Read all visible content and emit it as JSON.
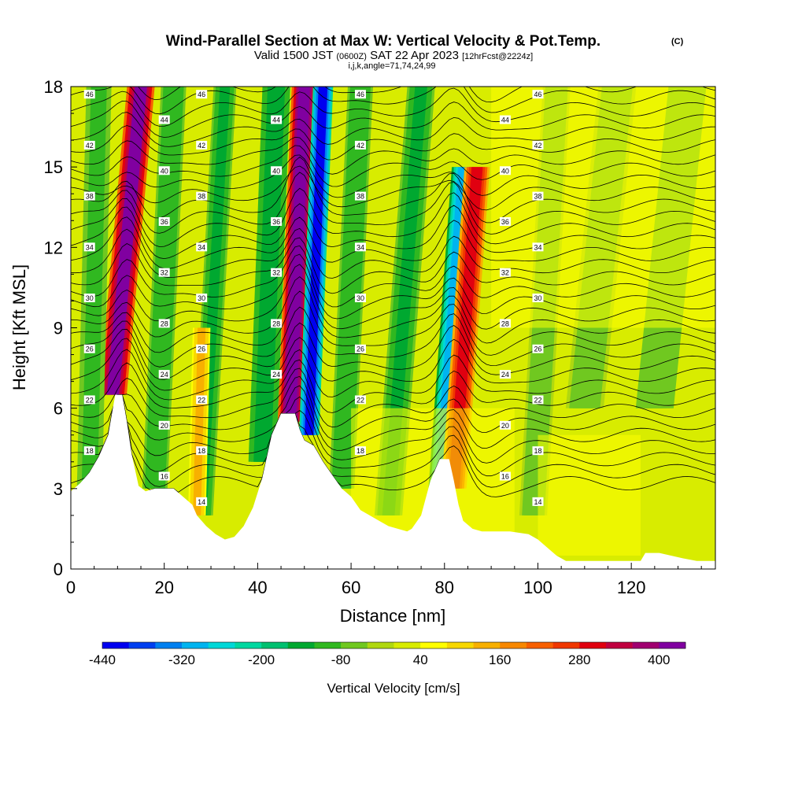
{
  "chart_data": {
    "type": "heatmap",
    "title": "Wind-Parallel Section at Max W: Vertical Velocity & Pot.Temp.",
    "title_mark": "(C)",
    "subtitle": {
      "valid": "Valid 1500 JST",
      "utc": "(0600Z)",
      "date": "SAT 22 Apr 2023",
      "fcst": "[12hrFcst@2224z]"
    },
    "ijk_line": "i,j,k,angle=71,74,24,99",
    "xlabel": "Distance [nm]",
    "ylabel": "Height [Kft MSL]",
    "xlim": [
      0,
      138
    ],
    "ylim": [
      0,
      18
    ],
    "x_ticks": [
      "0",
      "20",
      "40",
      "60",
      "80",
      "100",
      "120"
    ],
    "y_ticks": [
      "0",
      "3",
      "6",
      "9",
      "12",
      "15",
      "18"
    ],
    "colorbar": {
      "label": "Vertical Velocity [cm/s]",
      "min": -440,
      "max": 440,
      "step": 40,
      "tick_labels": [
        "-440",
        "-320",
        "-200",
        "-80",
        "40",
        "160",
        "280",
        "400"
      ],
      "colors": [
        "#0000f0",
        "#0040f0",
        "#0080f0",
        "#00b4f0",
        "#00d8d8",
        "#00d8a0",
        "#00c070",
        "#00a830",
        "#30b820",
        "#70c820",
        "#b0d810",
        "#d8ec00",
        "#ffff00",
        "#f8d800",
        "#f8b000",
        "#f88800",
        "#f86000",
        "#f03800",
        "#e00010",
        "#c00040",
        "#a00070",
        "#8000a0"
      ]
    },
    "updraft_cores_x_nm": [
      12,
      49,
      82
    ],
    "downdraft_core_x_nm": 53,
    "terrain_kft": [
      [
        0,
        2.9
      ],
      [
        2,
        3.2
      ],
      [
        4,
        3.6
      ],
      [
        6,
        4.2
      ],
      [
        8,
        5
      ],
      [
        9.5,
        6.5
      ],
      [
        11,
        6.5
      ],
      [
        12,
        5.5
      ],
      [
        13,
        4.3
      ],
      [
        14.5,
        3.1
      ],
      [
        16,
        2.9
      ],
      [
        18,
        3
      ],
      [
        22,
        3
      ],
      [
        24,
        2.7
      ],
      [
        26,
        2.4
      ],
      [
        27,
        2
      ],
      [
        29,
        1.6
      ],
      [
        31,
        1.3
      ],
      [
        33,
        1.1
      ],
      [
        35,
        1.2
      ],
      [
        37,
        1.6
      ],
      [
        39,
        2.3
      ],
      [
        41,
        3.4
      ],
      [
        43,
        5
      ],
      [
        45,
        5.8
      ],
      [
        48,
        5.8
      ],
      [
        49,
        5.2
      ],
      [
        50,
        4.8
      ],
      [
        52,
        4.6
      ],
      [
        54,
        4
      ],
      [
        56,
        3.5
      ],
      [
        58,
        3
      ],
      [
        60,
        2.7
      ],
      [
        62,
        2.2
      ],
      [
        64,
        2
      ],
      [
        66,
        1.8
      ],
      [
        68,
        1.6
      ],
      [
        70,
        1.5
      ],
      [
        72,
        1.4
      ],
      [
        73,
        1.5
      ],
      [
        75,
        2
      ],
      [
        77,
        3.3
      ],
      [
        79,
        4.1
      ],
      [
        81,
        4.1
      ],
      [
        82,
        3.3
      ],
      [
        83,
        2.4
      ],
      [
        84,
        1.8
      ],
      [
        86,
        1.5
      ],
      [
        88,
        1.4
      ],
      [
        90,
        1.4
      ],
      [
        94,
        1.4
      ],
      [
        98,
        1.3
      ],
      [
        100,
        1.1
      ],
      [
        102,
        0.8
      ],
      [
        104,
        0.5
      ],
      [
        106,
        0.3
      ],
      [
        118,
        0.3
      ],
      [
        122,
        0.3
      ],
      [
        123,
        0.6
      ],
      [
        126,
        0.6
      ],
      [
        131,
        0.4
      ],
      [
        134,
        0.3
      ],
      [
        138,
        0.3
      ]
    ],
    "theta_contour_labels": [
      "14",
      "16",
      "18",
      "20",
      "22",
      "24",
      "26",
      "28",
      "30",
      "32",
      "34",
      "36",
      "38",
      "40",
      "42",
      "44",
      "46"
    ]
  }
}
